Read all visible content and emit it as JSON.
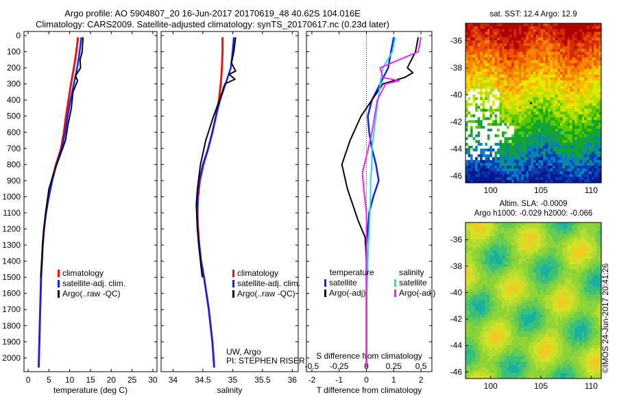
{
  "header": {
    "line1": "Argo profile: AO 5904807_20 16-Jun-2017 20170619_48 40.62S 104.016E",
    "line2": "Climatology: CARS2009. Satellite-adjusted climatology: synTS_20170617.nc (0.23d later)"
  },
  "stamp": "©IMOS 24-Jun-2017 20:41:26",
  "colors": {
    "climatology": "#ee1111",
    "satellite": "#1122ee",
    "argo": "#000000",
    "sal_satellite": "#22dddd",
    "sal_argo": "#ee22ee"
  },
  "chart_data": [
    {
      "type": "line",
      "xlabel": "temperature (deg C)",
      "ylabel": "",
      "xlim": [
        -1,
        31
      ],
      "ylim": [
        2100,
        0
      ],
      "xticks": [
        "0",
        "5",
        "10",
        "15",
        "20",
        "25",
        "30"
      ],
      "yticks": [
        "0",
        "100",
        "200",
        "300",
        "400",
        "500",
        "600",
        "700",
        "800",
        "900",
        "1000",
        "1100",
        "1200",
        "1300",
        "1400",
        "1500",
        "1600",
        "1700",
        "1800",
        "1900",
        "2000"
      ],
      "legend": [
        "climatology",
        "satellite-adj. clim.",
        "Argo(..raw -QC)"
      ],
      "legend_position": "bottom-center",
      "series": [
        {
          "name": "climatology",
          "x": [
            12.0,
            11.6,
            11.0,
            10.3,
            9.7,
            9.1,
            8.6,
            7.9,
            6.7,
            5.7,
            4.9,
            4.3,
            3.8,
            3.5,
            3.3,
            3.1,
            3.0,
            2.9,
            2.8,
            2.7,
            2.6,
            2.55
          ],
          "y": [
            10,
            100,
            200,
            300,
            400,
            500,
            600,
            700,
            800,
            900,
            1000,
            1100,
            1200,
            1300,
            1400,
            1500,
            1600,
            1700,
            1800,
            1900,
            2000,
            2060
          ]
        },
        {
          "name": "satellite-adj. clim.",
          "x": [
            12.8,
            12.4,
            11.8,
            11.0,
            10.2,
            9.5,
            8.9,
            8.1,
            6.8,
            5.8,
            5.0,
            4.3,
            3.8,
            3.5,
            3.3,
            3.1,
            3.0,
            2.9,
            2.8,
            2.7,
            2.6,
            2.55
          ],
          "y": [
            10,
            100,
            200,
            300,
            400,
            500,
            600,
            700,
            800,
            900,
            1000,
            1100,
            1200,
            1300,
            1400,
            1500,
            1600,
            1700,
            1800,
            1900,
            2000,
            2060
          ]
        },
        {
          "name": "Argo(..raw -QC)",
          "x": [
            13.2,
            13.0,
            12.5,
            12.6,
            11.4,
            11.9,
            10.8,
            10.4,
            9.6,
            9.0,
            8.3,
            7.6,
            6.2,
            5.0,
            4.2,
            3.8,
            3.5,
            3.3,
            3.0
          ],
          "y": [
            10,
            100,
            150,
            200,
            250,
            280,
            350,
            450,
            550,
            650,
            700,
            750,
            850,
            950,
            1100,
            1200,
            1300,
            1400,
            1500
          ]
        }
      ]
    },
    {
      "type": "line",
      "xlabel": "salinity",
      "ylabel": "",
      "xlim": [
        33.8,
        36.1
      ],
      "ylim": [
        2100,
        0
      ],
      "xticks": [
        "34",
        "34.5",
        "35",
        "35.5",
        "36"
      ],
      "legend": [
        "climatology",
        "satellite-adj. clim.",
        "Argo(..raw -QC)"
      ],
      "legend_position": "bottom-right",
      "annotations": [
        "UW, Argo",
        "PI: STEPHEN RISER"
      ],
      "series": [
        {
          "name": "climatology",
          "x": [
            34.83,
            34.83,
            34.82,
            34.8,
            34.77,
            34.72,
            34.66,
            34.59,
            34.51,
            34.45,
            34.42,
            34.41,
            34.42,
            34.44,
            34.47,
            34.52,
            34.56,
            34.6,
            34.63,
            34.66,
            34.68,
            34.69
          ],
          "y": [
            10,
            100,
            200,
            300,
            400,
            500,
            600,
            700,
            800,
            900,
            1000,
            1100,
            1200,
            1300,
            1400,
            1500,
            1600,
            1700,
            1800,
            1900,
            2000,
            2060
          ]
        },
        {
          "name": "satellite-adj. clim.",
          "x": [
            35.02,
            35.0,
            34.97,
            34.88,
            34.79,
            34.72,
            34.66,
            34.59,
            34.5,
            34.44,
            34.41,
            34.4,
            34.41,
            34.44,
            34.47,
            34.52,
            34.56,
            34.6,
            34.63,
            34.66,
            34.68,
            34.69
          ],
          "y": [
            10,
            100,
            200,
            300,
            400,
            500,
            600,
            700,
            800,
            900,
            1000,
            1100,
            1200,
            1300,
            1400,
            1500,
            1600,
            1700,
            1800,
            1900,
            2000,
            2060
          ]
        },
        {
          "name": "Argo(..raw -QC)",
          "x": [
            35.05,
            35.02,
            34.98,
            35.05,
            34.94,
            35.04,
            34.87,
            34.78,
            34.68,
            34.55,
            34.46,
            34.41,
            34.39,
            34.41,
            34.43,
            34.46,
            34.49
          ],
          "y": [
            10,
            100,
            170,
            220,
            240,
            270,
            300,
            400,
            500,
            650,
            800,
            950,
            1050,
            1200,
            1300,
            1400,
            1500
          ]
        }
      ]
    },
    {
      "type": "line",
      "xlabel": "T difference from climatology",
      "xlabel_top": "S difference from climatology",
      "xlim": [
        -2.2,
        2.4
      ],
      "ylim": [
        2100,
        0
      ],
      "xticks": [
        "-2",
        "-1",
        "0",
        "1",
        "2"
      ],
      "xticks_top": [
        "-0.5",
        "-0.25",
        "0",
        "0.25",
        "0.5"
      ],
      "legend_titles": [
        "temperature",
        "salinity"
      ],
      "legend": [
        "satellite",
        "Argo(-adj)",
        "satellite",
        "Argo(-adj)"
      ],
      "legend_position": "bottom-center",
      "series": [
        {
          "name": "satellite",
          "x": [
            1.0,
            0.9,
            0.8,
            0.5,
            0.2,
            0.05,
            0.1,
            0.2,
            0.35,
            0.45,
            0.25,
            0.1,
            0.05,
            0.0,
            0.0,
            0.0,
            0.0
          ],
          "y": [
            10,
            100,
            200,
            300,
            400,
            500,
            600,
            700,
            800,
            900,
            1000,
            1100,
            1200,
            1300,
            1500,
            1800,
            2060
          ]
        },
        {
          "name": "Argo(-adj)",
          "x": [
            1.9,
            1.8,
            1.5,
            1.7,
            1.4,
            0.6,
            0.2,
            -0.2,
            -0.6,
            -0.9,
            -0.7,
            -0.5,
            -0.3,
            -0.05,
            0.0,
            0.0
          ],
          "y": [
            10,
            100,
            200,
            230,
            260,
            300,
            400,
            500,
            650,
            800,
            950,
            1050,
            1150,
            1250,
            1400,
            2060
          ]
        },
        {
          "name": "satellite",
          "x": [
            1.05,
            0.95,
            0.6,
            0.5,
            0.35,
            0.2,
            0.2,
            0.15,
            0.15,
            0.1,
            0.05,
            0.0,
            0.0
          ],
          "y": [
            10,
            100,
            200,
            300,
            500,
            700,
            800,
            900,
            1000,
            1200,
            1400,
            1700,
            2060
          ]
        },
        {
          "name": "Argo(-adj)",
          "x": [
            2.0,
            1.9,
            0.5,
            0.6,
            1.2,
            0.7,
            0.4,
            0.2,
            0.0,
            -0.15,
            -0.1,
            0.0,
            0.0,
            0.0
          ],
          "y": [
            10,
            100,
            200,
            260,
            280,
            300,
            400,
            600,
            750,
            850,
            950,
            1100,
            1300,
            2060
          ]
        }
      ]
    },
    {
      "type": "heatmap",
      "title": "sat. SST: 12.4 Argo: 12.9",
      "xticks": [
        "100",
        "105",
        "110"
      ],
      "yticks": [
        "-36",
        "-38",
        "-40",
        "-42",
        "-44",
        "-46"
      ],
      "xlim": [
        97.5,
        111
      ],
      "ylim": [
        -46.5,
        -34.7
      ]
    },
    {
      "type": "heatmap",
      "title": "Altim. SLA: -0.0009",
      "subtitle": "Argo h1000: -0.029 h2000: -0.066",
      "xticks": [
        "100",
        "105",
        "110"
      ],
      "yticks": [
        "-36",
        "-38",
        "-40",
        "-42",
        "-44",
        "-46"
      ],
      "xlim": [
        97.5,
        111
      ],
      "ylim": [
        -46.5,
        -34.7
      ]
    }
  ]
}
